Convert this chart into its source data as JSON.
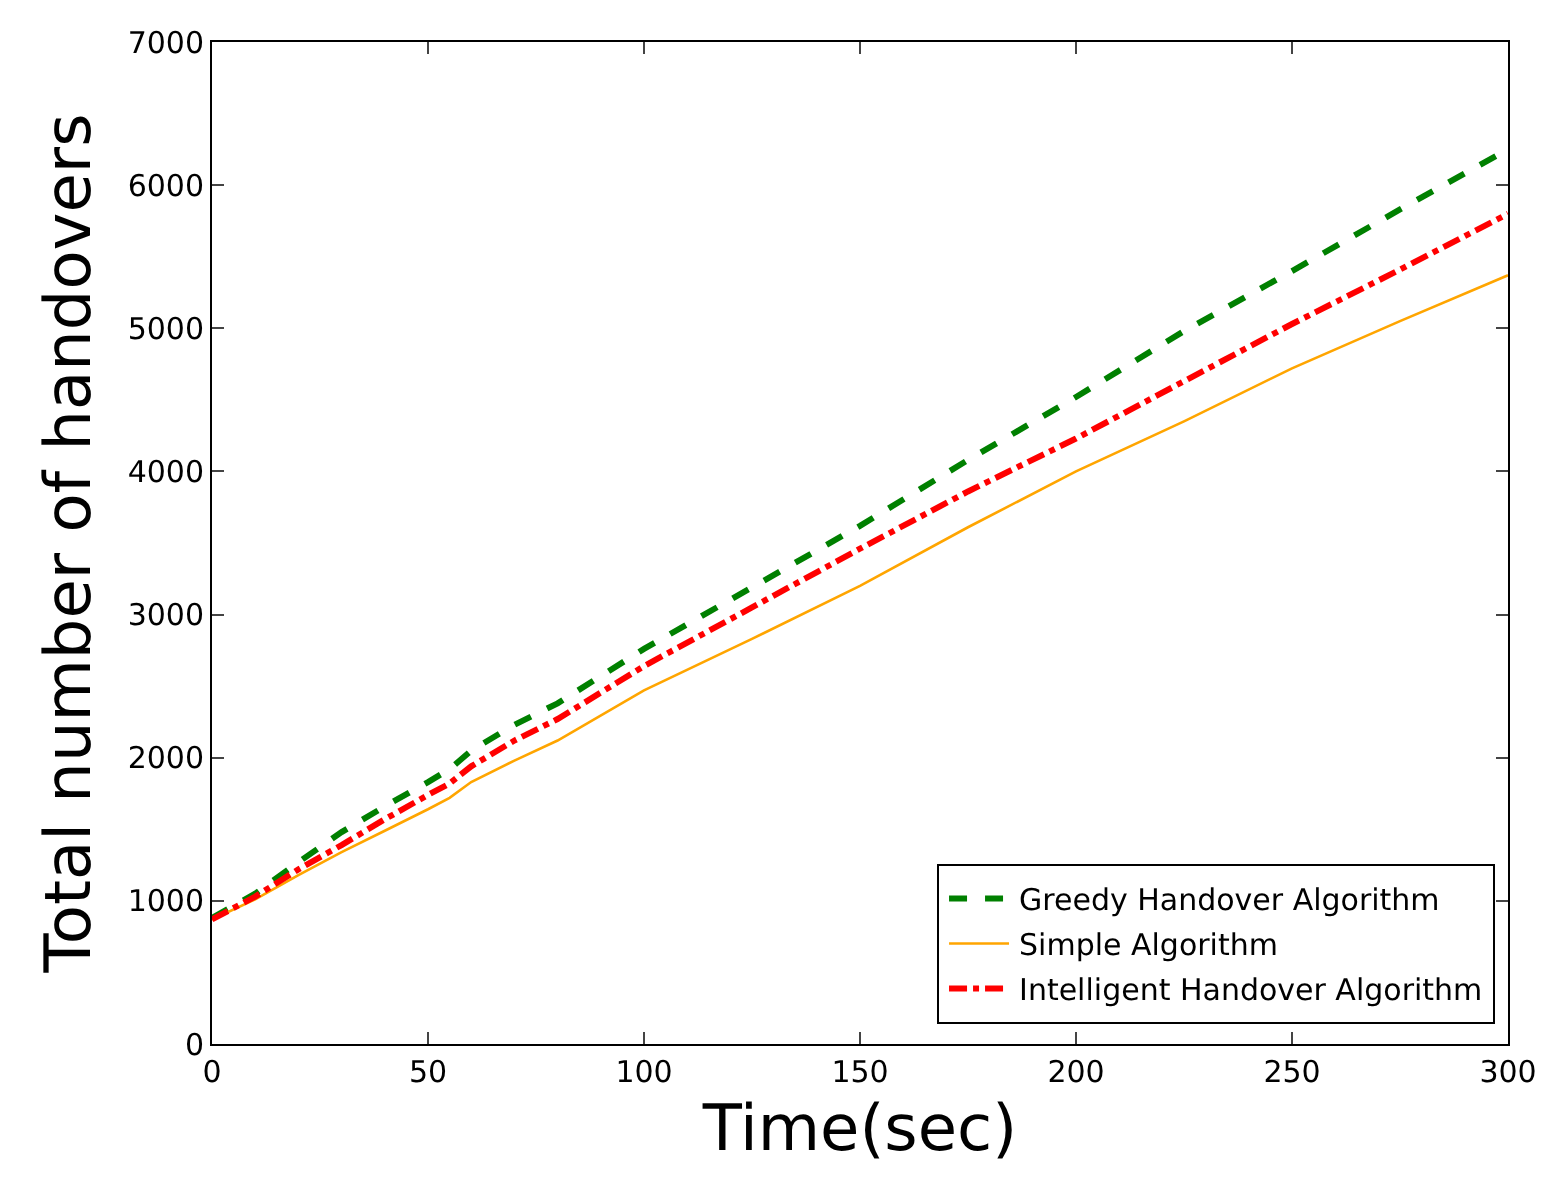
{
  "chart_data": {
    "type": "line",
    "xlabel": "Time(sec)",
    "ylabel": "Total number of handovers",
    "x": [
      0,
      10,
      20,
      30,
      40,
      50,
      55,
      60,
      70,
      80,
      100,
      125,
      150,
      175,
      200,
      225,
      250,
      275,
      300
    ],
    "series": [
      {
        "name": "Greedy Handover Algorithm",
        "color": "#008000",
        "line_style": "dashed",
        "values": [
          880,
          1050,
          1270,
          1480,
          1660,
          1830,
          1920,
          2050,
          2230,
          2380,
          2760,
          3190,
          3620,
          4080,
          4520,
          4980,
          5400,
          5830,
          6250
        ]
      },
      {
        "name": "Simple Algorithm",
        "color": "#ffa500",
        "line_style": "solid",
        "values": [
          870,
          1010,
          1180,
          1340,
          1490,
          1640,
          1720,
          1830,
          1980,
          2120,
          2470,
          2830,
          3200,
          3610,
          4000,
          4350,
          4720,
          5050,
          5370
        ]
      },
      {
        "name": "Intelligent Handover Algorithm",
        "color": "#ff0000",
        "line_style": "dotted",
        "values": [
          870,
          1030,
          1220,
          1390,
          1570,
          1740,
          1820,
          1940,
          2120,
          2270,
          2640,
          3050,
          3460,
          3860,
          4230,
          4630,
          5030,
          5410,
          5800
        ]
      }
    ],
    "xlim": [
      0,
      300
    ],
    "xticks": [
      0,
      50,
      100,
      150,
      200,
      250,
      300
    ],
    "ylim": [
      0,
      7000
    ],
    "yticks": [
      0,
      1000,
      2000,
      3000,
      4000,
      5000,
      6000,
      7000
    ],
    "legend": "bottom right",
    "marker": "none"
  }
}
